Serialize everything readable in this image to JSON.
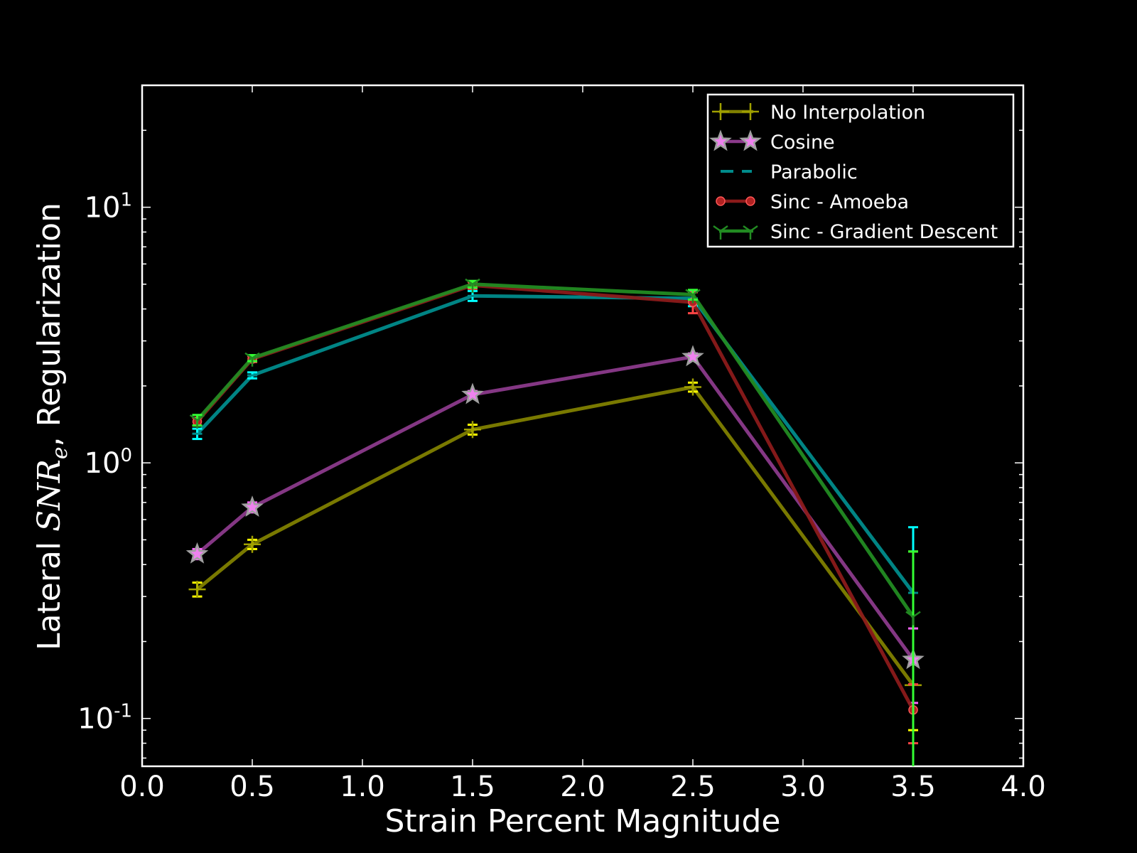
{
  "chart_data": {
    "type": "line",
    "xlabel": "Strain Percent Magnitude",
    "ylabel_prefix": "Lateral ",
    "ylabel_symbol": "SNR",
    "ylabel_subscript": "e",
    "ylabel_suffix": ", Regularization",
    "xlim": [
      0.0,
      4.0
    ],
    "ylim": [
      0.065,
      30
    ],
    "yscale": "log",
    "xticks": [
      "0.0",
      "0.5",
      "1.0",
      "1.5",
      "2.0",
      "2.5",
      "3.0",
      "3.5",
      "4.0"
    ],
    "yticks": [
      {
        "base": "10",
        "exp": "-1",
        "value": 0.1
      },
      {
        "base": "10",
        "exp": "0",
        "value": 1
      },
      {
        "base": "10",
        "exp": "1",
        "value": 10
      }
    ],
    "grid": false,
    "legend_position": "top-right",
    "x": [
      0.25,
      0.5,
      1.5,
      2.5,
      3.5
    ],
    "series": [
      {
        "name": "No Interpolation",
        "line": "#808000",
        "cap": "#ffff00",
        "marker": "plus",
        "values": [
          0.32,
          0.48,
          1.35,
          1.98,
          0.135
        ],
        "err": [
          [
            0.3,
            0.34
          ],
          [
            0.46,
            0.5
          ],
          [
            1.29,
            1.41
          ],
          [
            1.9,
            2.06
          ],
          [
            0.09,
            0.45
          ]
        ]
      },
      {
        "name": "Cosine",
        "line": "#8b3a8b",
        "cap": "#ff66ff",
        "marker": "star",
        "values": [
          0.44,
          0.67,
          1.85,
          2.6,
          0.17
        ],
        "err": [
          [
            0.42,
            0.46
          ],
          [
            0.64,
            0.7
          ],
          [
            1.79,
            1.91
          ],
          [
            2.52,
            2.68
          ],
          [
            0.115,
            0.225
          ]
        ]
      },
      {
        "name": "Parabolic",
        "line": "#008b8b",
        "cap": "#00ffff",
        "marker": "hline",
        "values": [
          1.3,
          2.2,
          4.5,
          4.4,
          0.31
        ],
        "err": [
          [
            1.24,
            1.36
          ],
          [
            2.14,
            2.26
          ],
          [
            4.3,
            4.7
          ],
          [
            4.1,
            4.7
          ],
          [
            0.06,
            0.56
          ]
        ]
      },
      {
        "name": "Sinc - Amoeba",
        "line": "#8b1a1a",
        "cap": "#ff4444",
        "marker": "circle",
        "values": [
          1.45,
          2.55,
          4.95,
          4.25,
          0.108
        ],
        "err": [
          [
            1.4,
            1.5
          ],
          [
            2.48,
            2.62
          ],
          [
            4.8,
            5.1
          ],
          [
            3.85,
            4.65
          ],
          [
            0.08,
            0.136
          ]
        ]
      },
      {
        "name": "Sinc - Gradient Descent",
        "line": "#228b22",
        "cap": "#33ff33",
        "marker": "tri",
        "values": [
          1.47,
          2.57,
          5.0,
          4.55,
          0.25
        ],
        "err": [
          [
            1.4,
            1.54
          ],
          [
            2.5,
            2.64
          ],
          [
            4.85,
            5.15
          ],
          [
            4.35,
            4.75
          ],
          [
            0.05,
            0.45
          ]
        ]
      }
    ]
  }
}
